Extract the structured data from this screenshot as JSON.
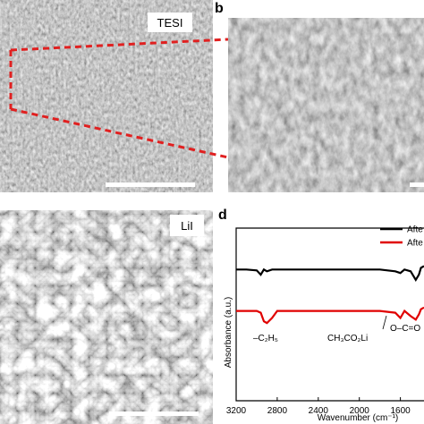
{
  "panels": {
    "a": {
      "label": "TESI"
    },
    "b": {
      "letter": "b"
    },
    "c": {
      "label": "LiI"
    },
    "d": {
      "letter": "d"
    }
  },
  "chart_data": {
    "type": "line",
    "xlabel": "Wavenumber (cm⁻¹)",
    "ylabel": "Absorbance (a.u.)",
    "xlim": [
      3200,
      1370
    ],
    "xticks": [
      3200,
      2800,
      2400,
      2000,
      1600
    ],
    "ylim": [
      0,
      10
    ],
    "x": [
      3200,
      3100,
      3000,
      2960,
      2930,
      2900,
      2850,
      2800,
      2600,
      2400,
      2200,
      2000,
      1800,
      1650,
      1600,
      1560,
      1500,
      1450,
      1420,
      1400,
      1370
    ],
    "series": [
      {
        "name": "Afte",
        "color": "#000000",
        "values": [
          7.6,
          7.6,
          7.55,
          7.3,
          7.6,
          7.5,
          7.6,
          7.6,
          7.6,
          7.6,
          7.6,
          7.6,
          7.6,
          7.5,
          7.4,
          7.6,
          7.5,
          7.0,
          7.3,
          7.7,
          7.8
        ]
      },
      {
        "name": "Afte",
        "color": "#e00000",
        "values": [
          5.2,
          5.2,
          5.2,
          5.1,
          4.6,
          4.5,
          4.8,
          5.2,
          5.2,
          5.2,
          5.2,
          5.2,
          5.2,
          5.1,
          4.8,
          5.2,
          4.9,
          4.7,
          5.0,
          5.3,
          5.4
        ]
      }
    ],
    "annotations": [
      "–C₂H₅",
      "CH₃CO₂Li",
      "O–C=O"
    ]
  }
}
